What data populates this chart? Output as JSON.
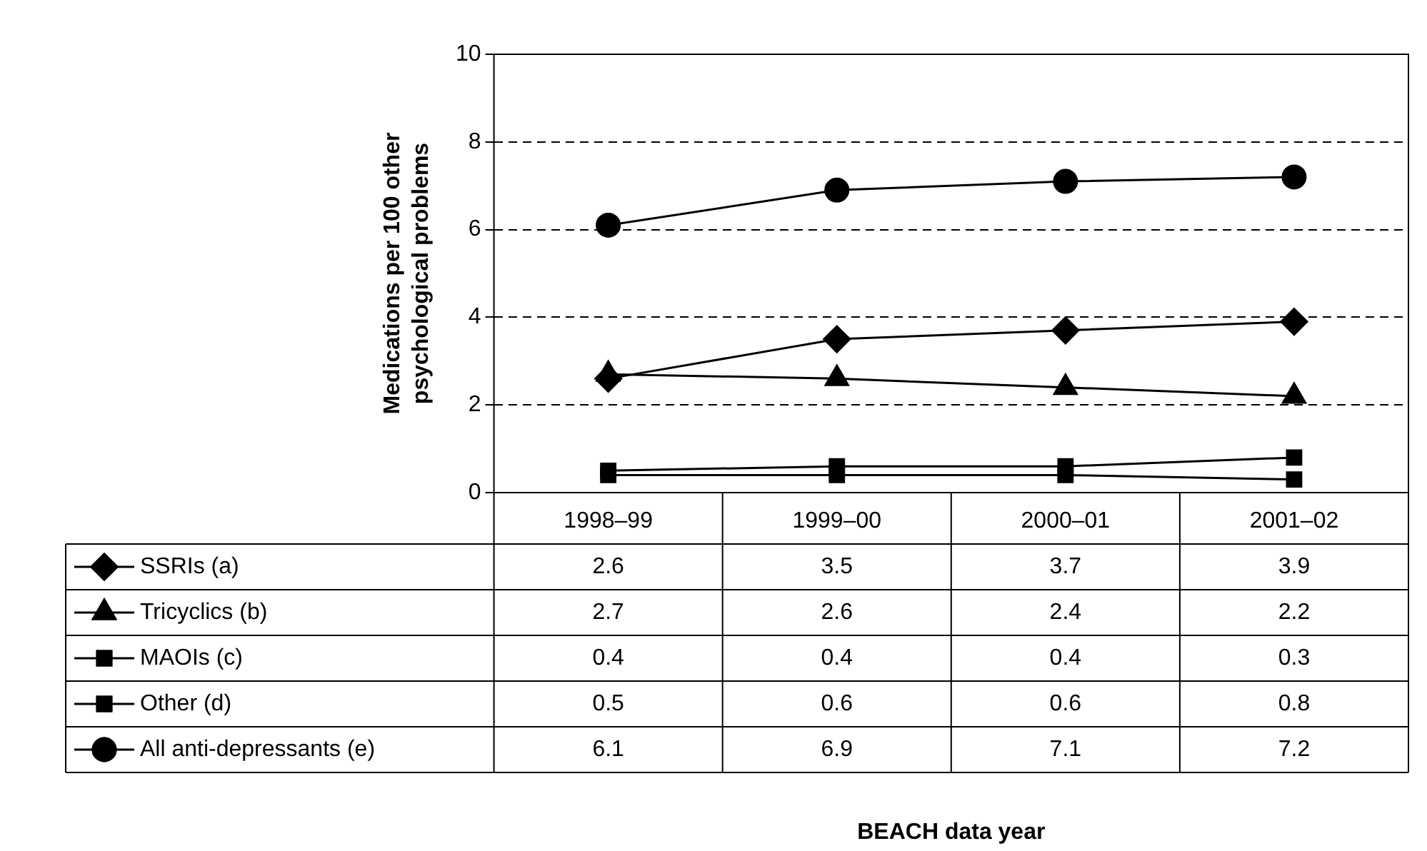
{
  "chart_data": {
    "type": "line",
    "ylabel": "Medications per 100 other psychological problems",
    "annotations": [
      "BEACH data year"
    ],
    "categories": [
      "1998–99",
      "1999–00",
      "2000–01",
      "2001–02"
    ],
    "series": [
      {
        "name": "SSRIs (a)",
        "color": "#000000",
        "marker": "diamond",
        "values": [
          2.6,
          3.5,
          3.7,
          3.9
        ]
      },
      {
        "name": "Tricyclics (b)",
        "color": "#000000",
        "marker": "triangle",
        "values": [
          2.7,
          2.6,
          2.4,
          2.2
        ]
      },
      {
        "name": "MAOIs (c)",
        "color": "#000000",
        "marker": "square",
        "values": [
          0.4,
          0.4,
          0.4,
          0.3
        ]
      },
      {
        "name": "Other (d)",
        "color": "#000000",
        "marker": "square",
        "values": [
          0.5,
          0.6,
          0.6,
          0.8
        ]
      },
      {
        "name": "All anti-depressants (e)",
        "color": "#000000",
        "marker": "circle",
        "values": [
          6.1,
          6.9,
          7.1,
          7.2
        ]
      }
    ],
    "ylim": [
      0,
      10
    ],
    "yticks": [
      0,
      2,
      4,
      6,
      8,
      10
    ],
    "grid": "y",
    "data_labels": true,
    "legend": "bottom left"
  }
}
